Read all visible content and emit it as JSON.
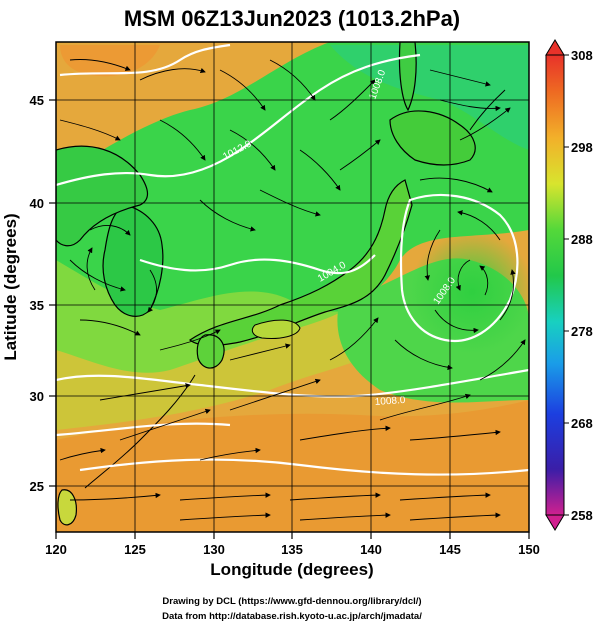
{
  "title": "MSM 06Z13Jun2023 (1013.2hPa)",
  "xlabel": "Longitude (degrees)",
  "ylabel": "Latitude  (degrees)",
  "x_ticks": [
    "120",
    "125",
    "130",
    "135",
    "140",
    "145",
    "150"
  ],
  "y_ticks": [
    "25",
    "30",
    "35",
    "40",
    "45"
  ],
  "colorbar": {
    "ticks": [
      "258",
      "268",
      "278",
      "288",
      "298",
      "308"
    ],
    "min": 258,
    "max": 308
  },
  "isobar_labels": [
    "1008.0",
    "1008.0",
    "1012.0",
    "1004.0",
    "1008.0"
  ],
  "credit_line1": "Drawing by DCL (https://www.gfd-dennou.org/library/dcl/)",
  "credit_line2": "Data from http://database.rish.kyoto-u.ac.jp/arch/jmadata/",
  "colors": {
    "warm": "#e9a23a",
    "mid": "#2fd24a",
    "cool": "#1fc0b0",
    "contour": "#ffffff",
    "land_outline": "#000000"
  },
  "chart_data": {
    "type": "heatmap",
    "title": "MSM 06Z13Jun2023 (1013.2hPa)",
    "xlabel": "Longitude (degrees)",
    "ylabel": "Latitude  (degrees)",
    "xlim": [
      120,
      150
    ],
    "ylim": [
      22.4,
      47.6
    ],
    "colorbar_range": [
      258,
      308
    ],
    "vector_field": "wind streamlines",
    "isobars_hPa": [
      1004.0,
      1008.0,
      1012.0
    ]
  }
}
